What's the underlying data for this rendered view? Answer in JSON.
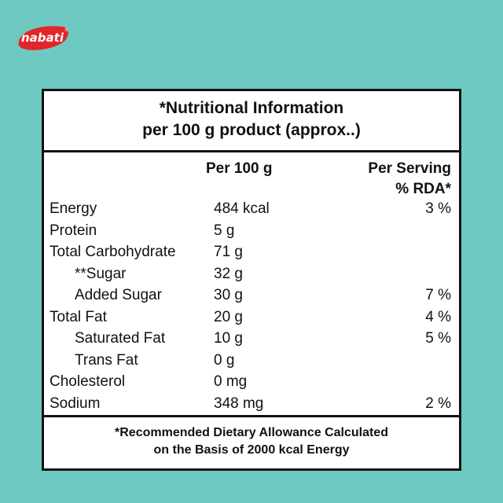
{
  "brand": {
    "logo_text": "nabati",
    "color": "#e2262a"
  },
  "background_color": "#6ec9c0",
  "title": {
    "line1": "*Nutritional Information",
    "line2": "per 100 g product (approx..)"
  },
  "columns": {
    "per100_label": "Per 100 g",
    "serving_line1": "Per Serving",
    "serving_line2": "% RDA*"
  },
  "rows": [
    {
      "label": "Energy",
      "amount": "484 kcal",
      "rda": "3 %"
    },
    {
      "label": "Protein",
      "amount": "5 g",
      "rda": ""
    },
    {
      "label": "Total Carbohydrate",
      "amount": "71 g",
      "rda": ""
    },
    {
      "label": "**Sugar",
      "amount": "32 g",
      "rda": ""
    },
    {
      "label": "Added Sugar",
      "amount": "30 g",
      "rda": "7 %"
    },
    {
      "label": "Total Fat",
      "amount": "20 g",
      "rda": "4 %"
    },
    {
      "label": "Saturated Fat",
      "amount": "10 g",
      "rda": "5 %"
    },
    {
      "label": "Trans Fat",
      "amount": "0 g",
      "rda": ""
    },
    {
      "label": "Cholesterol",
      "amount": "0 mg",
      "rda": ""
    },
    {
      "label": "Sodium",
      "amount": "348 mg",
      "rda": "2 %"
    }
  ],
  "footer": {
    "line1": "*Recommended Dietary Allowance Calculated",
    "line2": "on the Basis of 2000 kcal Energy"
  }
}
